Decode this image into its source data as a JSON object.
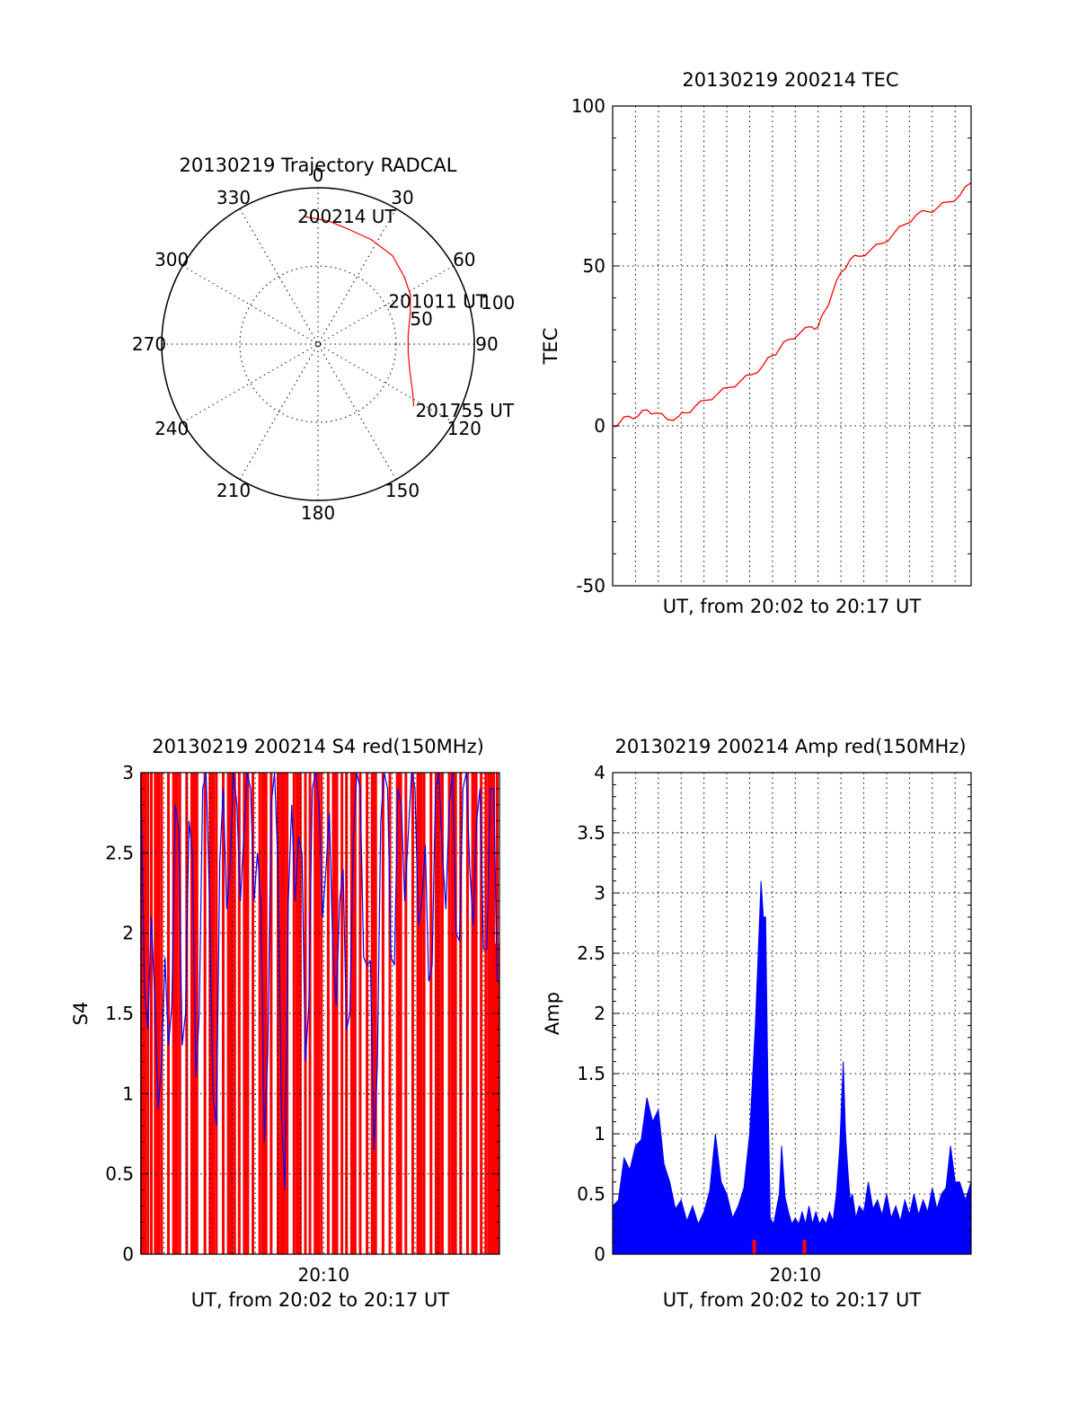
{
  "colors": {
    "red": "#ff0000",
    "blue": "#0000ff",
    "black": "#000000"
  },
  "chart_data": [
    {
      "type": "polar",
      "title": "20130219 Trajectory RADCAL",
      "azimuth_labels": [
        "0",
        "30",
        "60",
        "90",
        "120",
        "150",
        "180",
        "210",
        "240",
        "270",
        "300",
        "330"
      ],
      "radius_labels": [
        "50",
        "100"
      ],
      "rlim": [
        0,
        100
      ],
      "grid": true,
      "track": {
        "color": "red",
        "points": [
          {
            "az": 354,
            "r": 82
          },
          {
            "az": 5,
            "r": 79
          },
          {
            "az": 15,
            "r": 76
          },
          {
            "az": 27,
            "r": 75
          },
          {
            "az": 40,
            "r": 74
          },
          {
            "az": 52,
            "r": 70
          },
          {
            "az": 62,
            "r": 67
          },
          {
            "az": 72,
            "r": 62
          },
          {
            "az": 84,
            "r": 58
          },
          {
            "az": 96,
            "r": 58
          },
          {
            "az": 108,
            "r": 62
          },
          {
            "az": 117,
            "r": 68
          },
          {
            "az": 123,
            "r": 73
          }
        ]
      },
      "annotations": [
        {
          "text": "200214 UT",
          "at": "start"
        },
        {
          "text": "201011 UT",
          "at": "middle"
        },
        {
          "text": "201755 UT",
          "at": "end"
        }
      ]
    },
    {
      "type": "line",
      "title": "20130219 200214 TEC",
      "xlabel": "UT, from 20:02 to 20:17 UT",
      "ylabel": "TEC",
      "ylim": [
        -50,
        100
      ],
      "yticks": [
        "100",
        "50",
        "0",
        "-50"
      ],
      "xlim_minutes": [
        0,
        15.7
      ],
      "grid": true,
      "series": [
        {
          "color": "red",
          "x": [
            0,
            0.3,
            0.7,
            1.1,
            1.5,
            1.9,
            2.4,
            2.9,
            3.2,
            3.6,
            4.1,
            4.6,
            5.1,
            5.6,
            6.1,
            6.6,
            7.0,
            7.3,
            7.7,
            8.2,
            8.7,
            9.0,
            9.3,
            9.6,
            10.0,
            10.4,
            10.8,
            11.3,
            11.8,
            12.3,
            12.8,
            13.3,
            13.8,
            14.2,
            14.7,
            15.2,
            15.7
          ],
          "y": [
            0,
            1,
            3,
            3,
            5,
            4,
            2,
            3,
            4,
            6,
            8,
            10,
            12,
            14,
            16,
            19,
            22,
            24,
            27,
            29,
            31,
            31,
            36,
            41,
            48,
            52,
            53,
            55,
            57,
            60,
            63,
            66,
            67,
            68,
            70,
            72,
            76
          ]
        }
      ]
    },
    {
      "type": "line",
      "title": "20130219 200214 S4 red(150MHz)",
      "xlabel": "UT, from 20:02 to 20:17 UT",
      "ylabel": "S4",
      "ylim": [
        0,
        3
      ],
      "yticks": [
        "3",
        "2.5",
        "2",
        "1.5",
        "1",
        "0.5",
        "0"
      ],
      "xtick_labels": [
        {
          "minute": 8,
          "label": "20:10"
        }
      ],
      "xlim_minutes": [
        0,
        15.7
      ],
      "grid": true,
      "red_spikes_minutes": [
        0.1,
        0.3,
        0.45,
        0.7,
        0.9,
        1.2,
        1.5,
        1.7,
        2.0,
        2.3,
        2.45,
        2.8,
        3.1,
        3.3,
        3.6,
        3.9,
        4.1,
        4.3,
        4.6,
        4.9,
        5.2,
        5.4,
        5.7,
        6.0,
        6.2,
        6.4,
        6.7,
        6.9,
        7.2,
        7.4,
        7.7,
        7.9,
        8.2,
        8.5,
        8.8,
        9.0,
        9.3,
        9.6,
        9.9,
        10.2,
        10.6,
        10.9,
        11.3,
        11.6,
        11.9,
        12.2,
        12.4,
        12.7,
        13.0,
        13.2,
        13.5,
        13.7,
        14.0,
        14.3,
        14.6,
        14.9,
        15.1,
        15.3,
        15.45,
        15.6
      ],
      "series": [
        {
          "color": "blue",
          "x": [
            0,
            0.3,
            0.6,
            0.9,
            1.2,
            1.5,
            1.8,
            2.1,
            2.4,
            2.7,
            3.0,
            3.3,
            3.6,
            3.9,
            4.2,
            4.5,
            4.8,
            5.1,
            5.4,
            5.7,
            6.0,
            6.3,
            6.6,
            6.9,
            7.2,
            7.5,
            7.8,
            8.1,
            8.4,
            8.7,
            9.0,
            9.3,
            9.6,
            9.9,
            10.2,
            10.5,
            10.8,
            11.1,
            11.4,
            11.7,
            12.0,
            12.3,
            12.6,
            12.9,
            13.2,
            13.5,
            13.8,
            14.1,
            14.4,
            14.7,
            15.0,
            15.3,
            15.6
          ],
          "y": [
            2.9,
            1.4,
            1.6,
            1.2,
            1.3,
            2.8,
            1.3,
            2.7,
            1.1,
            2.9,
            2.2,
            0.8,
            2.9,
            2.4,
            2.8,
            2.6,
            2.9,
            2.5,
            0.7,
            2.8,
            2.4,
            0.4,
            2.8,
            2.6,
            1.2,
            2.9,
            2.8,
            2.4,
            1.9,
            2.2,
            1.4,
            2.6,
            2.9,
            1.8,
            0.65,
            2.7,
            2.9,
            1.8,
            2.8,
            2.6,
            2.9,
            2.2,
            1.7,
            2.9,
            2.5,
            2.8,
            2.0,
            2.9,
            2.4,
            2.7,
            1.9,
            2.9,
            1.7
          ]
        }
      ]
    },
    {
      "type": "area",
      "title": "20130219 200214 Amp red(150MHz)",
      "xlabel": "UT, from 20:02 to 20:17 UT",
      "ylabel": "Amp",
      "ylim": [
        0,
        4
      ],
      "yticks": [
        "4",
        "3.5",
        "3",
        "2.5",
        "2",
        "1.5",
        "1",
        "0.5",
        "0"
      ],
      "xtick_labels": [
        {
          "minute": 8,
          "label": "20:10"
        }
      ],
      "xlim_minutes": [
        0,
        15.7
      ],
      "grid": true,
      "series": [
        {
          "color": "blue",
          "x": [
            0,
            0.5,
            1.0,
            1.5,
            2.0,
            2.5,
            3.0,
            3.5,
            4.0,
            4.5,
            5.0,
            5.5,
            6.0,
            6.5,
            6.7,
            6.9,
            7.2,
            7.4,
            7.7,
            8.0,
            8.3,
            8.6,
            8.9,
            9.2,
            9.5,
            9.8,
            10.1,
            10.3,
            10.5,
            10.8,
            11.2,
            11.6,
            12.0,
            12.4,
            12.8,
            13.2,
            13.6,
            14.0,
            14.4,
            14.8,
            15.2,
            15.7
          ],
          "y": [
            0.4,
            0.8,
            0.9,
            1.3,
            1.2,
            0.6,
            0.45,
            0.4,
            0.35,
            1.0,
            0.5,
            0.4,
            1.0,
            3.1,
            2.8,
            0.3,
            0.4,
            0.9,
            0.35,
            0.3,
            0.35,
            0.4,
            0.35,
            0.3,
            0.35,
            0.5,
            1.6,
            0.7,
            0.5,
            0.4,
            0.6,
            0.45,
            0.5,
            0.4,
            0.45,
            0.5,
            0.45,
            0.55,
            0.5,
            0.9,
            0.6,
            0.6
          ]
        }
      ],
      "red_marks_minutes": [
        6.2,
        8.4
      ]
    }
  ],
  "page": {
    "polar_title": "20130219 Trajectory RADCAL",
    "tec_title": "20130219 200214 TEC",
    "s4_title": "20130219 200214 S4 red(150MHz)",
    "amp_title": "20130219 200214 Amp red(150MHz)"
  }
}
